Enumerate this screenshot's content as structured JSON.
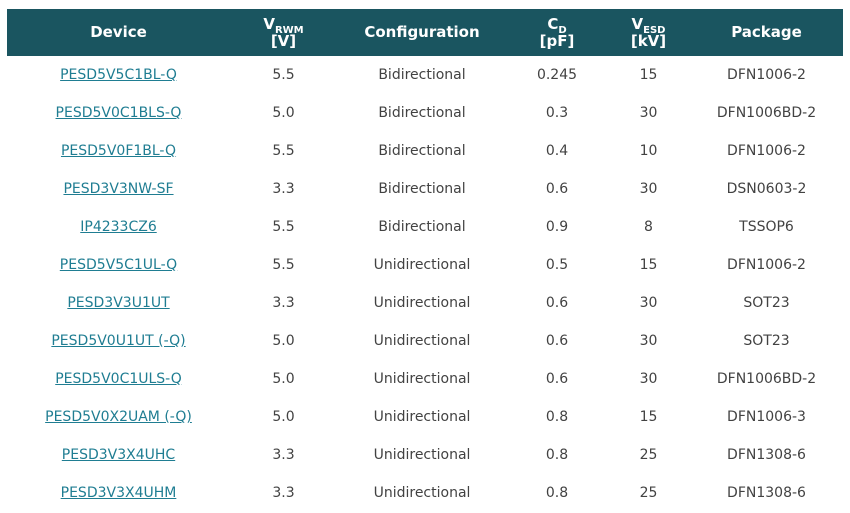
{
  "table": {
    "colors": {
      "header_background": "#1a5560",
      "header_text": "#ffffff",
      "link_text": "#1f7d92",
      "body_text": "#424242",
      "page_background": "#ffffff"
    },
    "columns": [
      {
        "id": "device",
        "label": "Device"
      },
      {
        "id": "vrwm",
        "letter": "V",
        "subscript": "RWM",
        "unit": "[V]"
      },
      {
        "id": "configuration",
        "label": "Configuration"
      },
      {
        "id": "cd",
        "letter": "C",
        "subscript": "D",
        "unit": "[pF]"
      },
      {
        "id": "vesd",
        "letter": "V",
        "subscript": "ESD",
        "unit": "[kV]"
      },
      {
        "id": "package",
        "label": "Package"
      }
    ],
    "rows": [
      {
        "device": "PESD5V5C1BL-Q",
        "vrwm": "5.5",
        "configuration": "Bidirectional",
        "cd": "0.245",
        "vesd": "15",
        "package": "DFN1006-2"
      },
      {
        "device": "PESD5V0C1BLS-Q",
        "vrwm": "5.0",
        "configuration": "Bidirectional",
        "cd": "0.3",
        "vesd": "30",
        "package": "DFN1006BD-2"
      },
      {
        "device": "PESD5V0F1BL-Q",
        "vrwm": "5.5",
        "configuration": "Bidirectional",
        "cd": "0.4",
        "vesd": "10",
        "package": "DFN1006-2"
      },
      {
        "device": "PESD3V3NW-SF",
        "vrwm": "3.3",
        "configuration": "Bidirectional",
        "cd": "0.6",
        "vesd": "30",
        "package": "DSN0603-2"
      },
      {
        "device": "IP4233CZ6",
        "vrwm": "5.5",
        "configuration": "Bidirectional",
        "cd": "0.9",
        "vesd": "8",
        "package": "TSSOP6"
      },
      {
        "device": "PESD5V5C1UL-Q",
        "vrwm": "5.5",
        "configuration": "Unidirectional",
        "cd": "0.5",
        "vesd": "15",
        "package": "DFN1006-2"
      },
      {
        "device": "PESD3V3U1UT",
        "vrwm": "3.3",
        "configuration": "Unidirectional",
        "cd": "0.6",
        "vesd": "30",
        "package": "SOT23"
      },
      {
        "device": "PESD5V0U1UT (-Q)",
        "vrwm": "5.0",
        "configuration": "Unidirectional",
        "cd": "0.6",
        "vesd": "30",
        "package": "SOT23"
      },
      {
        "device": "PESD5V0C1ULS-Q",
        "vrwm": "5.0",
        "configuration": "Unidirectional",
        "cd": "0.6",
        "vesd": "30",
        "package": "DFN1006BD-2"
      },
      {
        "device": "PESD5V0X2UAM (-Q)",
        "vrwm": "5.0",
        "configuration": "Unidirectional",
        "cd": "0.8",
        "vesd": "15",
        "package": "DFN1006-3"
      },
      {
        "device": "PESD3V3X4UHC",
        "vrwm": "3.3",
        "configuration": "Unidirectional",
        "cd": "0.8",
        "vesd": "25",
        "package": "DFN1308-6"
      },
      {
        "device": "PESD3V3X4UHM",
        "vrwm": "3.3",
        "configuration": "Unidirectional",
        "cd": "0.8",
        "vesd": "25",
        "package": "DFN1308-6"
      }
    ]
  }
}
